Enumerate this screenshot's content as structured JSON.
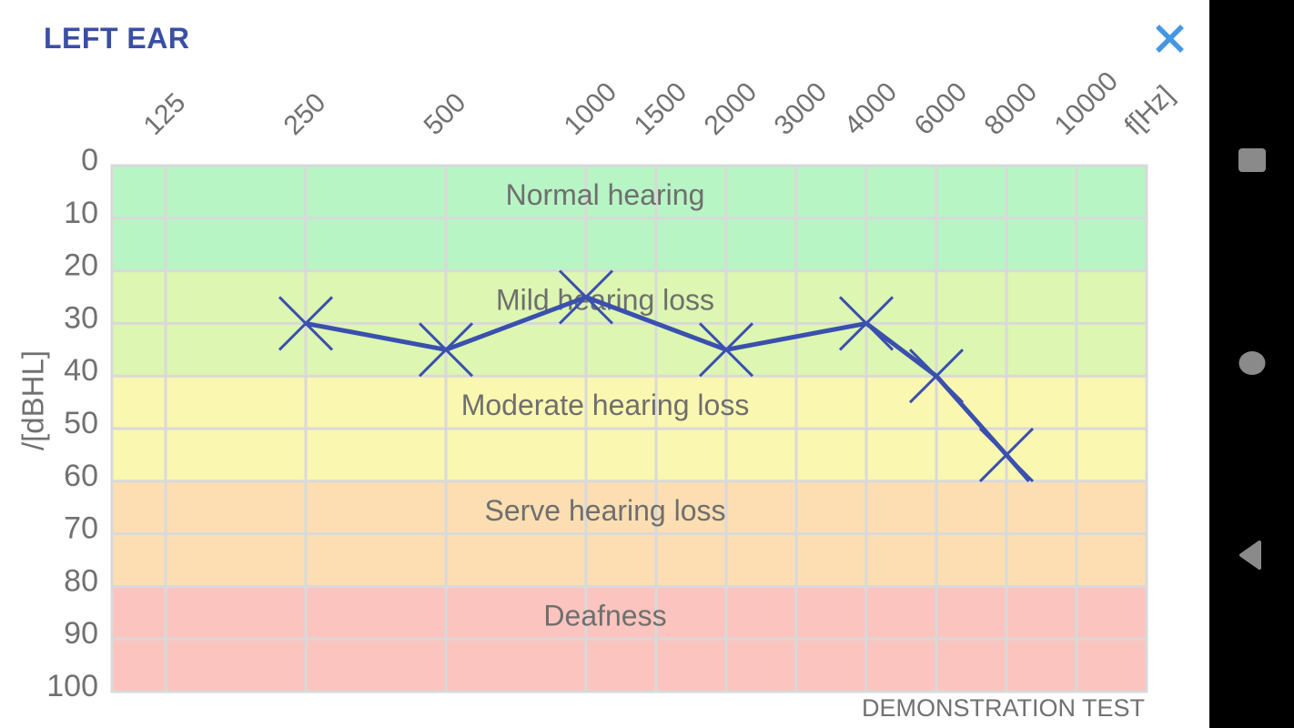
{
  "header": {
    "title": "LEFT EAR"
  },
  "chart_data": {
    "type": "line",
    "x_axis": {
      "label": "f[Hz]",
      "ticks": [
        "125",
        "250",
        "500",
        "1000",
        "1500",
        "2000",
        "3000",
        "4000",
        "6000",
        "8000",
        "10000"
      ]
    },
    "y_axis": {
      "label": "/[dBHL]",
      "ticks": [
        "0",
        "10",
        "20",
        "30",
        "40",
        "50",
        "60",
        "70",
        "80",
        "90",
        "100"
      ],
      "min": 0,
      "max": 100
    },
    "bands": [
      {
        "label": "Normal hearing",
        "from": 0,
        "to": 20,
        "color": "#b7f5c4"
      },
      {
        "label": "Mild hearing loss",
        "from": 20,
        "to": 40,
        "color": "#ddf6b1"
      },
      {
        "label": "Moderate hearing loss",
        "from": 40,
        "to": 60,
        "color": "#faf7b0"
      },
      {
        "label": "Serve hearing loss",
        "from": 60,
        "to": 80,
        "color": "#fcdeb2"
      },
      {
        "label": "Deafness",
        "from": 80,
        "to": 100,
        "color": "#fcc4be"
      }
    ],
    "series": [
      {
        "name": "left-ear-thresholds",
        "marker": "x",
        "color": "#3a50ae",
        "points": [
          {
            "f": "250",
            "db": 30
          },
          {
            "f": "500",
            "db": 35
          },
          {
            "f": "1000",
            "db": 25
          },
          {
            "f": "2000",
            "db": 35
          },
          {
            "f": "4000",
            "db": 30
          },
          {
            "f": "6000",
            "db": 40
          },
          {
            "f": "8000",
            "db": 55
          }
        ]
      }
    ],
    "note": "DEMONSTRATION TEST",
    "grid": true,
    "legend": "none"
  },
  "close": {
    "icon": "close-x",
    "color": "#4697e3"
  },
  "nav_bar": {
    "background": "#000000",
    "icon_color": "#8a8a8a",
    "buttons": [
      {
        "name": "recents",
        "shape": "square"
      },
      {
        "name": "home",
        "shape": "circle"
      },
      {
        "name": "back",
        "shape": "triangle-left"
      }
    ]
  },
  "colors": {
    "title": "#3a4fa4",
    "grid": "#d9d9d9",
    "axis_text": "#717171",
    "band_text": "#6f6f6f",
    "line": "#3a50ae"
  }
}
